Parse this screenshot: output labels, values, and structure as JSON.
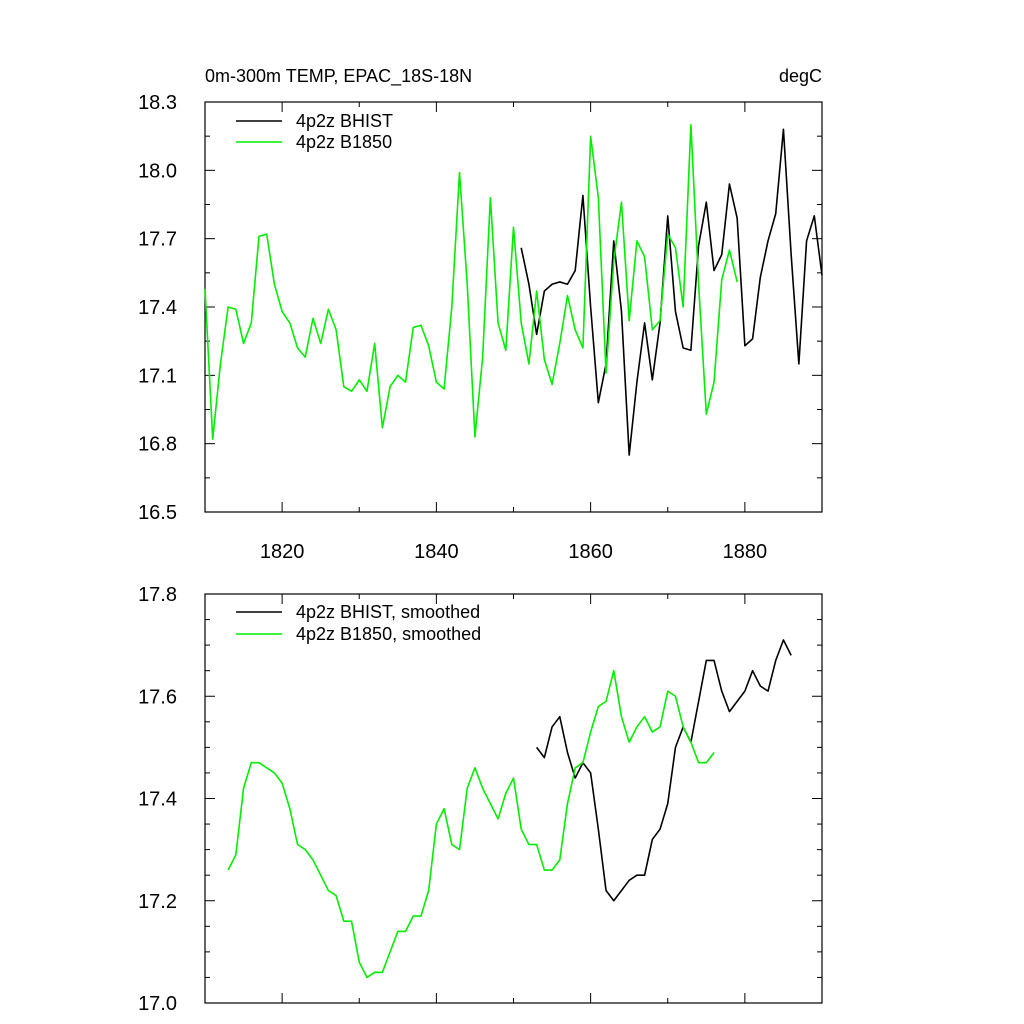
{
  "chart_data": [
    {
      "type": "line",
      "title_left": "0m-300m TEMP, EPAC_18S-18N",
      "title_right": "degC",
      "xlim": [
        1810,
        1890
      ],
      "ylim": [
        16.5,
        18.3
      ],
      "xticks": [
        1820,
        1840,
        1860,
        1880
      ],
      "xticklabels": [
        "1820",
        "1840",
        "1860",
        "1880"
      ],
      "yticks": [
        16.5,
        16.8,
        17.1,
        17.4,
        17.7,
        18.0,
        18.3
      ],
      "yticklabels": [
        "16.5",
        "16.8",
        "17.1",
        "17.4",
        "17.7",
        "18.0",
        "18.3"
      ],
      "series": [
        {
          "name": "4p2z BHIST",
          "color": "#000000",
          "x_start": 1851,
          "values": [
            17.66,
            17.5,
            17.28,
            17.47,
            17.5,
            17.51,
            17.5,
            17.56,
            17.89,
            17.4,
            16.98,
            17.15,
            17.69,
            17.38,
            16.75,
            17.07,
            17.33,
            17.08,
            17.33,
            17.8,
            17.38,
            17.22,
            17.21,
            17.67,
            17.86,
            17.56,
            17.63,
            17.94,
            17.79,
            17.23,
            17.26,
            17.53,
            17.69,
            17.81,
            18.18,
            17.63,
            17.15,
            17.69,
            17.8,
            17.54
          ]
        },
        {
          "name": "4p2z B1850",
          "color": "#00ee00",
          "x_start": 1810,
          "values": [
            17.48,
            16.82,
            17.15,
            17.4,
            17.39,
            17.24,
            17.33,
            17.71,
            17.72,
            17.5,
            17.38,
            17.33,
            17.22,
            17.18,
            17.35,
            17.24,
            17.39,
            17.3,
            17.05,
            17.03,
            17.08,
            17.03,
            17.24,
            16.87,
            17.05,
            17.1,
            17.07,
            17.31,
            17.32,
            17.23,
            17.07,
            17.04,
            17.4,
            17.99,
            17.5,
            16.83,
            17.18,
            17.88,
            17.33,
            17.21,
            17.75,
            17.33,
            17.15,
            17.47,
            17.17,
            17.06,
            17.24,
            17.45,
            17.3,
            17.22,
            18.15,
            17.88,
            17.11,
            17.6,
            17.86,
            17.34,
            17.69,
            17.62,
            17.3,
            17.34,
            17.72,
            17.66,
            17.4,
            18.2,
            17.5,
            16.93,
            17.07,
            17.52,
            17.65,
            17.51
          ]
        }
      ]
    },
    {
      "type": "line",
      "xlim": [
        1810,
        1890
      ],
      "ylim": [
        17.0,
        17.8
      ],
      "xticks": [
        1820,
        1840,
        1860,
        1880
      ],
      "yticks": [
        17.0,
        17.2,
        17.4,
        17.6,
        17.8
      ],
      "yticklabels": [
        "17.0",
        "17.2",
        "17.4",
        "17.6",
        "17.8"
      ],
      "series": [
        {
          "name": "4p2z BHIST, smoothed",
          "color": "#000000",
          "x_start": 1853,
          "values": [
            17.5,
            17.48,
            17.54,
            17.56,
            17.49,
            17.44,
            17.47,
            17.45,
            17.34,
            17.22,
            17.2,
            17.22,
            17.24,
            17.25,
            17.25,
            17.32,
            17.34,
            17.39,
            17.5,
            17.54,
            17.51,
            17.59,
            17.67,
            17.67,
            17.61,
            17.57,
            17.59,
            17.61,
            17.65,
            17.62,
            17.61,
            17.67,
            17.71,
            17.68
          ]
        },
        {
          "name": "4p2z B1850, smoothed",
          "color": "#00ee00",
          "x_start": 1813,
          "values": [
            17.26,
            17.29,
            17.42,
            17.47,
            17.47,
            17.46,
            17.45,
            17.43,
            17.38,
            17.31,
            17.3,
            17.28,
            17.25,
            17.22,
            17.21,
            17.16,
            17.16,
            17.08,
            17.05,
            17.06,
            17.06,
            17.1,
            17.14,
            17.14,
            17.17,
            17.17,
            17.22,
            17.35,
            17.38,
            17.31,
            17.3,
            17.42,
            17.46,
            17.42,
            17.39,
            17.36,
            17.41,
            17.44,
            17.34,
            17.31,
            17.31,
            17.26,
            17.26,
            17.28,
            17.39,
            17.46,
            17.47,
            17.53,
            17.58,
            17.59,
            17.65,
            17.56,
            17.51,
            17.54,
            17.56,
            17.53,
            17.54,
            17.61,
            17.6,
            17.54,
            17.51,
            17.47,
            17.47,
            17.49
          ]
        }
      ]
    }
  ]
}
